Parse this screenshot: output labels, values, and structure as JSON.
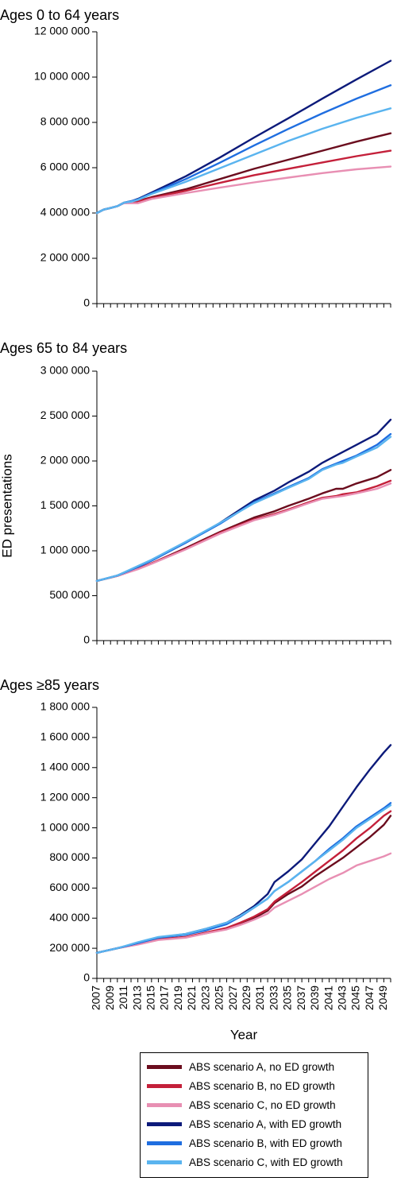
{
  "chart_data": [
    {
      "type": "line",
      "title": "Ages 0 to 64 years",
      "ylim": [
        0,
        12000000
      ],
      "yticks": [
        0,
        2000000,
        4000000,
        6000000,
        8000000,
        10000000,
        12000000
      ],
      "ytick_labels": [
        "0",
        "2 000 000",
        "4 000 000",
        "6 000 000",
        "8 000 000",
        "10 000 000",
        "12 000 000"
      ],
      "x": [
        2007,
        2008,
        2009,
        2010,
        2011,
        2012,
        2013,
        2015,
        2020,
        2025,
        2030,
        2035,
        2040,
        2045,
        2050
      ],
      "series": [
        {
          "name": "ABS scenario A, no ED growth",
          "values": [
            4000000,
            4150000,
            4220000,
            4300000,
            4460000,
            4470000,
            4530000,
            4700000,
            5050000,
            5500000,
            5950000,
            6350000,
            6750000,
            7150000,
            7520000
          ]
        },
        {
          "name": "ABS scenario B, no ED growth",
          "values": [
            4000000,
            4150000,
            4220000,
            4300000,
            4460000,
            4470000,
            4520000,
            4660000,
            4980000,
            5330000,
            5670000,
            5950000,
            6230000,
            6510000,
            6750000
          ]
        },
        {
          "name": "ABS scenario C, no ED growth",
          "values": [
            4000000,
            4150000,
            4220000,
            4300000,
            4440000,
            4430000,
            4430000,
            4620000,
            4880000,
            5120000,
            5350000,
            5560000,
            5760000,
            5930000,
            6050000
          ]
        },
        {
          "name": "ABS scenario A, with ED growth",
          "values": [
            4000000,
            4150000,
            4220000,
            4300000,
            4460000,
            4520000,
            4620000,
            4900000,
            5620000,
            6450000,
            7330000,
            8180000,
            9050000,
            9900000,
            10720000
          ]
        },
        {
          "name": "ABS scenario B, with ED growth",
          "values": [
            4000000,
            4150000,
            4220000,
            4300000,
            4460000,
            4520000,
            4600000,
            4860000,
            5500000,
            6220000,
            6980000,
            7710000,
            8400000,
            9050000,
            9640000
          ]
        },
        {
          "name": "ABS scenario C, with ED growth",
          "values": [
            4000000,
            4150000,
            4220000,
            4300000,
            4460000,
            4500000,
            4580000,
            4840000,
            5380000,
            5980000,
            6580000,
            7180000,
            7720000,
            8200000,
            8620000
          ]
        }
      ]
    },
    {
      "type": "line",
      "title": "Ages 65 to 84 years",
      "ylabel": "ED presentations",
      "ylim": [
        0,
        3000000
      ],
      "yticks": [
        0,
        500000,
        1000000,
        1500000,
        2000000,
        2500000,
        3000000
      ],
      "ytick_labels": [
        "0",
        "500 000",
        "1 000 000",
        "1 500 000",
        "2 000 000",
        "2 500 000",
        "3 000 000"
      ],
      "x": [
        2007,
        2010,
        2013,
        2015,
        2020,
        2025,
        2030,
        2033,
        2035,
        2038,
        2040,
        2042,
        2043,
        2045,
        2048,
        2050
      ],
      "series": [
        {
          "name": "ABS scenario A, no ED growth",
          "values": [
            665000,
            720000,
            800000,
            860000,
            1030000,
            1210000,
            1370000,
            1440000,
            1500000,
            1580000,
            1640000,
            1690000,
            1690000,
            1750000,
            1820000,
            1900000
          ]
        },
        {
          "name": "ABS scenario B, no ED growth",
          "values": [
            665000,
            720000,
            800000,
            860000,
            1020000,
            1200000,
            1350000,
            1410000,
            1460000,
            1540000,
            1590000,
            1610000,
            1630000,
            1650000,
            1720000,
            1780000
          ]
        },
        {
          "name": "ABS scenario C, no ED growth",
          "values": [
            665000,
            720000,
            795000,
            855000,
            1015000,
            1190000,
            1340000,
            1400000,
            1450000,
            1530000,
            1580000,
            1600000,
            1610000,
            1640000,
            1690000,
            1750000
          ]
        },
        {
          "name": "ABS scenario A, with ED growth",
          "values": [
            665000,
            725000,
            820000,
            890000,
            1090000,
            1310000,
            1560000,
            1670000,
            1760000,
            1880000,
            1980000,
            2060000,
            2100000,
            2180000,
            2300000,
            2460000
          ]
        },
        {
          "name": "ABS scenario B, with ED growth",
          "values": [
            665000,
            725000,
            820000,
            890000,
            1090000,
            1300000,
            1540000,
            1640000,
            1710000,
            1810000,
            1910000,
            1970000,
            2000000,
            2060000,
            2180000,
            2300000
          ]
        },
        {
          "name": "ABS scenario C, with ED growth",
          "values": [
            665000,
            725000,
            830000,
            900000,
            1100000,
            1310000,
            1530000,
            1630000,
            1700000,
            1800000,
            1900000,
            1960000,
            1980000,
            2050000,
            2150000,
            2270000
          ]
        }
      ]
    },
    {
      "type": "line",
      "title": "Ages ≥85 years",
      "xlabel": "Year",
      "ylim": [
        0,
        1800000
      ],
      "yticks": [
        0,
        200000,
        400000,
        600000,
        800000,
        1000000,
        1200000,
        1400000,
        1600000,
        1800000
      ],
      "ytick_labels": [
        "0",
        "200 000",
        "400 000",
        "600 000",
        "800 000",
        "1 000 000",
        "1 200 000",
        "1 400 000",
        "1 600 000",
        "1 800 000"
      ],
      "xticks": [
        2007,
        2009,
        2011,
        2013,
        2015,
        2017,
        2019,
        2021,
        2023,
        2025,
        2027,
        2029,
        2031,
        2033,
        2035,
        2037,
        2039,
        2041,
        2043,
        2045,
        2047,
        2049
      ],
      "x": [
        2007,
        2010,
        2013,
        2016,
        2020,
        2023,
        2026,
        2028,
        2030,
        2032,
        2033,
        2035,
        2037,
        2039,
        2041,
        2043,
        2045,
        2047,
        2049,
        2050
      ],
      "series": [
        {
          "name": "ABS scenario A, no ED growth",
          "values": [
            170000,
            200000,
            230000,
            260000,
            275000,
            300000,
            330000,
            360000,
            400000,
            450000,
            500000,
            560000,
            610000,
            680000,
            740000,
            800000,
            870000,
            940000,
            1020000,
            1080000
          ]
        },
        {
          "name": "ABS scenario B, no ED growth",
          "values": [
            170000,
            200000,
            230000,
            260000,
            275000,
            305000,
            335000,
            370000,
            410000,
            460000,
            510000,
            575000,
            640000,
            710000,
            780000,
            850000,
            930000,
            1000000,
            1080000,
            1110000
          ]
        },
        {
          "name": "ABS scenario C, no ED growth",
          "values": [
            170000,
            200000,
            225000,
            255000,
            270000,
            300000,
            325000,
            355000,
            390000,
            430000,
            470000,
            515000,
            560000,
            610000,
            660000,
            700000,
            750000,
            780000,
            810000,
            830000
          ]
        },
        {
          "name": "ABS scenario A, with ED growth",
          "values": [
            170000,
            200000,
            235000,
            270000,
            295000,
            330000,
            370000,
            420000,
            480000,
            560000,
            640000,
            710000,
            790000,
            900000,
            1010000,
            1140000,
            1270000,
            1390000,
            1500000,
            1550000
          ]
        },
        {
          "name": "ABS scenario B, with ED growth",
          "values": [
            170000,
            200000,
            235000,
            270000,
            290000,
            320000,
            360000,
            410000,
            470000,
            530000,
            580000,
            640000,
            710000,
            780000,
            860000,
            930000,
            1010000,
            1070000,
            1130000,
            1165000
          ]
        },
        {
          "name": "ABS scenario C, with ED growth",
          "values": [
            170000,
            200000,
            240000,
            275000,
            295000,
            330000,
            370000,
            415000,
            470000,
            530000,
            580000,
            640000,
            710000,
            780000,
            850000,
            920000,
            1000000,
            1060000,
            1120000,
            1150000
          ]
        }
      ]
    }
  ],
  "colors": [
    "#6b0d1e",
    "#c4203a",
    "#e88fb3",
    "#0c1a7a",
    "#1f6ee0",
    "#5ab4ef"
  ]
}
